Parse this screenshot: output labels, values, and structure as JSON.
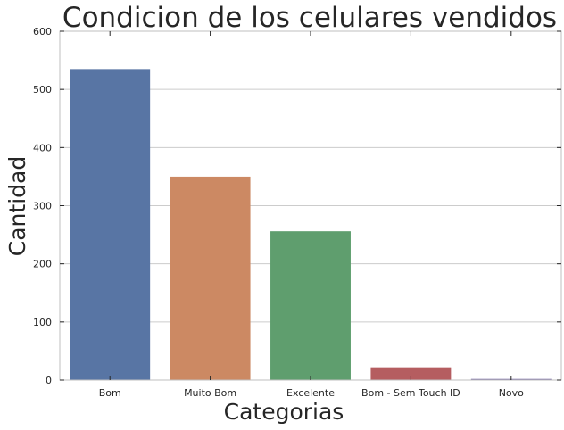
{
  "chart_data": {
    "type": "bar",
    "title": "Condicion de los celulares vendidos",
    "xlabel": "Categorias",
    "ylabel": "Cantidad",
    "categories": [
      "Bom",
      "Muito Bom",
      "Excelente",
      "Bom - Sem Touch ID",
      "Novo"
    ],
    "values": [
      535,
      350,
      256,
      22,
      2
    ],
    "colors": [
      "#5875a4",
      "#cc8963",
      "#5f9e6e",
      "#b55d60",
      "#857aab"
    ],
    "ylim": [
      0,
      600
    ],
    "yticks": [
      "0",
      "100",
      "200",
      "300",
      "400",
      "500",
      "600"
    ],
    "grid": true
  }
}
